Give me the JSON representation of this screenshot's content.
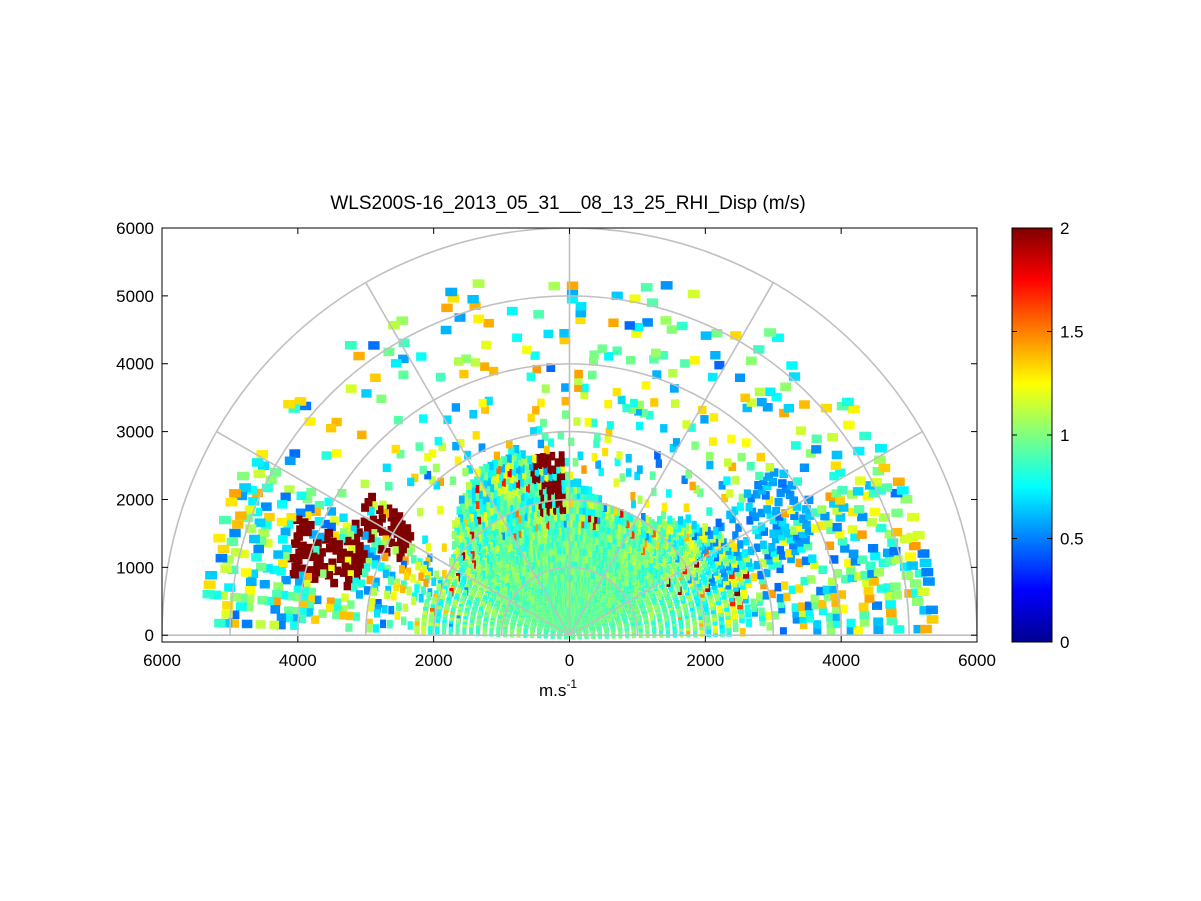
{
  "chart_data": {
    "type": "heatmap",
    "subtype": "polar RHI sector (half-disc) display",
    "title": "WLS200S-16_2013_05_31__08_13_25_RHI_Disp (m/s)",
    "xlabel": "m.s",
    "xlabel_superscript": "-1",
    "ylabel": "",
    "xlim": [
      -6000,
      6000
    ],
    "ylim": [
      -100,
      6000
    ],
    "x_tick_values": [
      -6000,
      -4000,
      -2000,
      0,
      2000,
      4000,
      6000
    ],
    "x_tick_labels": [
      "6000",
      "4000",
      "2000",
      "0",
      "2000",
      "4000",
      "6000"
    ],
    "y_tick_values": [
      0,
      1000,
      2000,
      3000,
      4000,
      5000,
      6000
    ],
    "y_tick_labels": [
      "0",
      "1000",
      "2000",
      "3000",
      "4000",
      "5000",
      "6000"
    ],
    "polar_grid": {
      "range_rings_m": [
        1000,
        2000,
        3000,
        4000,
        5000,
        6000
      ],
      "spokes_deg": [
        0,
        30,
        60,
        90,
        120,
        150,
        180
      ]
    },
    "colorbar": {
      "colormap": "jet",
      "clim": [
        0,
        2
      ],
      "tick_values": [
        0,
        0.5,
        1,
        1.5,
        2
      ],
      "tick_labels": [
        "0",
        "0.5",
        "1",
        "1.5",
        "2"
      ]
    },
    "field_summary": {
      "typical_value": 0.95,
      "near_field_range_m": [
        0,
        2800
      ],
      "sparse_far_field_range_m": [
        2800,
        5400
      ],
      "high_value_patches": [
        {
          "azimuth_deg": 162,
          "range_m": [
            3200,
            4400
          ],
          "value": 2
        },
        {
          "azimuth_deg": 150,
          "range_m": [
            2700,
            3600
          ],
          "value": 2
        },
        {
          "azimuth_deg": 98,
          "range_m": [
            1800,
            2700
          ],
          "value": 2
        }
      ],
      "low_value_patches": [
        {
          "azimuth_deg": 30,
          "range_m": [
            2200,
            4000
          ],
          "value": 0.45
        }
      ]
    },
    "grid": true
  }
}
